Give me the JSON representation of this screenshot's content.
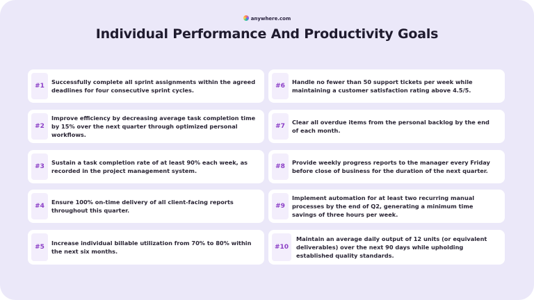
{
  "header": {
    "logo": "anywhere.com",
    "title": "Individual Performance And Productivity Goals"
  },
  "goals": [
    {
      "number": "#1",
      "text": "Successfully complete all sprint assignments within the agreed deadlines for four consecutive sprint cycles."
    },
    {
      "number": "#2",
      "text": "Improve efficiency by decreasing average task completion time by 15% over the next quarter through optimized personal workflows."
    },
    {
      "number": "#3",
      "text": "Sustain a task completion rate of at least 90% each week, as recorded in the project management system."
    },
    {
      "number": "#4",
      "text": "Ensure 100% on-time delivery of all client-facing reports throughout this quarter."
    },
    {
      "number": "#5",
      "text": "Increase individual billable utilization from 70% to 80% within the next six months."
    },
    {
      "number": "#6",
      "text": "Handle no fewer than 50 support tickets per week while maintaining a customer satisfaction rating above 4.5/5."
    },
    {
      "number": "#7",
      "text": "Clear all overdue items from the personal backlog by the end of each month."
    },
    {
      "number": "#8",
      "text": "Provide weekly progress reports to the manager every Friday before close of business for the duration of the next quarter."
    },
    {
      "number": "#9",
      "text": "Implement automation for at least two recurring manual processes by the end of Q2, generating a minimum time savings of three hours per week."
    },
    {
      "number": "#10",
      "text": "Maintain an average daily output of 12 units (or equivalent deliverables) over the next 90 days while upholding established quality standards."
    }
  ]
}
